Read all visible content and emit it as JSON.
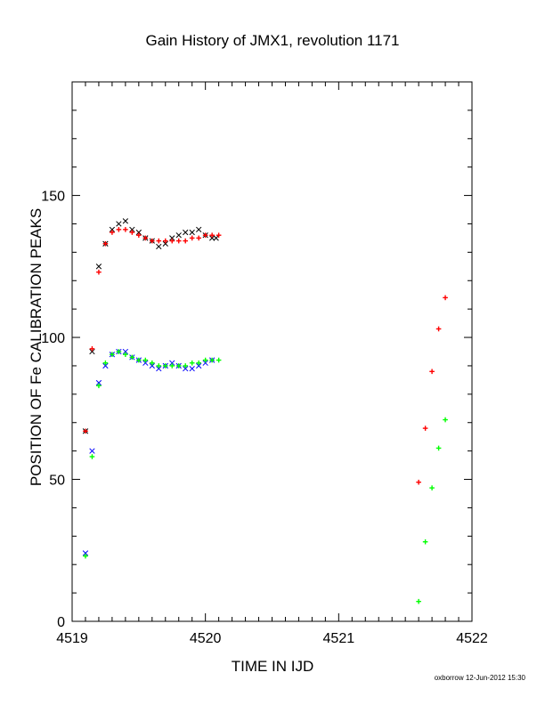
{
  "chart_data": {
    "type": "scatter",
    "title": "Gain History of JMX1, revolution 1171",
    "xlabel": "TIME IN IJD",
    "ylabel": "POSITION OF Fe CALIBRATION PEAKS",
    "xlim": [
      4519,
      4522
    ],
    "ylim": [
      0,
      190
    ],
    "xticks": [
      4519,
      4520,
      4521,
      4522
    ],
    "yticks": [
      0,
      50,
      100,
      150
    ],
    "grid": false,
    "series": [
      {
        "color": "#000000",
        "marker": "x",
        "x": [
          4519.1,
          4519.15,
          4519.2,
          4519.25,
          4519.3,
          4519.35,
          4519.4,
          4519.45,
          4519.5,
          4519.55,
          4519.6,
          4519.65,
          4519.7,
          4519.75,
          4519.8,
          4519.85,
          4519.9,
          4519.95,
          4520.0,
          4520.05,
          4520.08
        ],
        "y": [
          67,
          95,
          125,
          133,
          138,
          140,
          141,
          138,
          137,
          135,
          134,
          132,
          133,
          135,
          136,
          137,
          137,
          138,
          136,
          135,
          135
        ]
      },
      {
        "color": "#ff0000",
        "marker": "+",
        "x": [
          4519.1,
          4519.15,
          4519.2,
          4519.25,
          4519.3,
          4519.35,
          4519.4,
          4519.45,
          4519.5,
          4519.55,
          4519.6,
          4519.65,
          4519.7,
          4519.75,
          4519.8,
          4519.85,
          4519.9,
          4519.95,
          4520.0,
          4520.05,
          4520.1,
          4521.6,
          4521.65,
          4521.7,
          4521.75,
          4521.8
        ],
        "y": [
          67,
          96,
          123,
          133,
          137,
          138,
          138,
          137,
          136,
          135,
          134,
          134,
          134,
          134,
          134,
          134,
          135,
          135,
          136,
          136,
          136,
          49,
          68,
          88,
          103,
          114
        ]
      },
      {
        "color": "#0000ff",
        "marker": "x",
        "x": [
          4519.1,
          4519.15,
          4519.2,
          4519.25,
          4519.3,
          4519.35,
          4519.4,
          4519.45,
          4519.5,
          4519.55,
          4519.6,
          4519.65,
          4519.7,
          4519.75,
          4519.8,
          4519.85,
          4519.9,
          4519.95,
          4520.0,
          4520.05
        ],
        "y": [
          24,
          60,
          84,
          90,
          94,
          95,
          95,
          93,
          92,
          91,
          90,
          89,
          90,
          91,
          90,
          89,
          89,
          90,
          91,
          92
        ]
      },
      {
        "color": "#00ff00",
        "marker": "+",
        "x": [
          4519.1,
          4519.15,
          4519.2,
          4519.25,
          4519.3,
          4519.35,
          4519.4,
          4519.45,
          4519.5,
          4519.55,
          4519.6,
          4519.65,
          4519.7,
          4519.75,
          4519.8,
          4519.85,
          4519.9,
          4519.95,
          4520.0,
          4520.05,
          4520.1,
          4521.6,
          4521.65,
          4521.7,
          4521.75,
          4521.8
        ],
        "y": [
          23,
          58,
          83,
          91,
          94,
          95,
          94,
          93,
          92,
          92,
          91,
          90,
          90,
          90,
          90,
          90,
          91,
          91,
          92,
          92,
          92,
          7,
          28,
          47,
          61,
          71
        ]
      }
    ]
  },
  "footer": "oxborrow 12-Jun-2012 15:30"
}
